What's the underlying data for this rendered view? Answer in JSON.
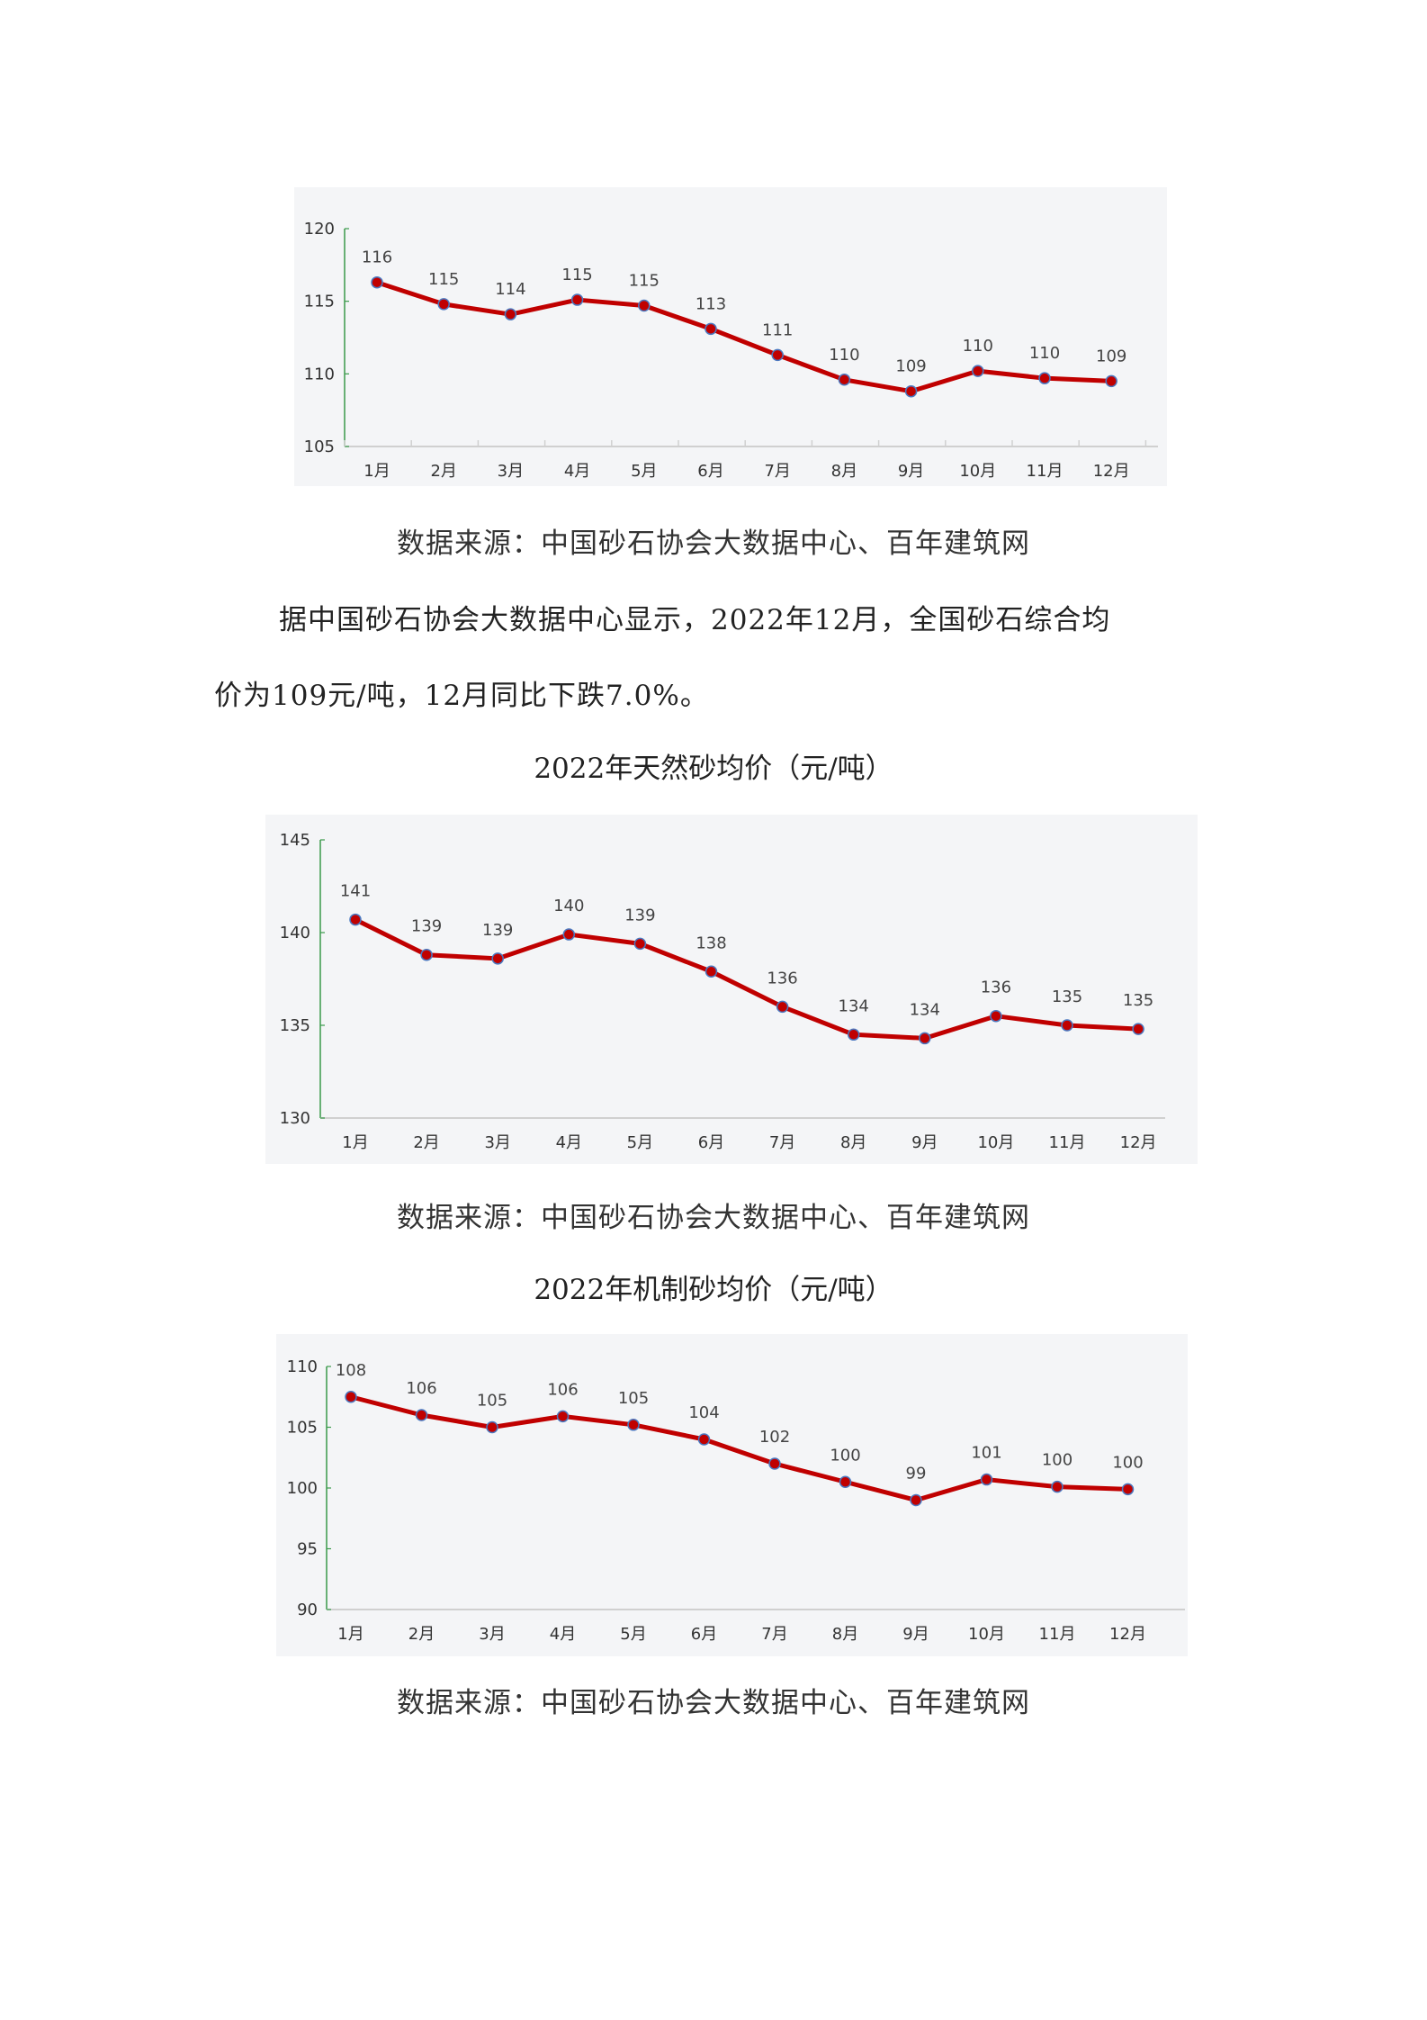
{
  "chart1": {
    "source": "数据来源：中国砂石协会大数据中心、百年建筑网"
  },
  "paragraph": {
    "line1": "据中国砂石协会大数据中心显示，2022年12月，全国砂石综合均",
    "line2": "价为109元/吨，12月同比下跌7.0%。"
  },
  "chart2": {
    "title": "2022年天然砂均价（元/吨）",
    "source": "数据来源：中国砂石协会大数据中心、百年建筑网"
  },
  "chart3": {
    "title": "2022年机制砂均价（元/吨）",
    "source": "数据来源：中国砂石协会大数据中心、百年建筑网"
  },
  "colors": {
    "line": "#c00000",
    "marker_edge": "#4a78c0",
    "axis_y": "#3a9a4a",
    "axis_x": "#d0d0d0",
    "panel_bg": "#f4f5f7"
  },
  "chart_data": [
    {
      "type": "line",
      "title": "",
      "categories": [
        "1月",
        "2月",
        "3月",
        "4月",
        "5月",
        "6月",
        "7月",
        "8月",
        "9月",
        "10月",
        "11月",
        "12月"
      ],
      "values": [
        116.3,
        114.8,
        114.1,
        115.1,
        114.7,
        113.1,
        111.3,
        109.6,
        108.8,
        110.2,
        109.7,
        109.5
      ],
      "data_labels": [
        "116",
        "115",
        "114",
        "115",
        "115",
        "113",
        "111",
        "110",
        "109",
        "110",
        "110",
        "109"
      ],
      "xlabel": "",
      "ylabel": "",
      "ylim": [
        105,
        120
      ],
      "yticks": [
        105,
        110,
        115,
        120
      ],
      "grid": false,
      "legend": null
    },
    {
      "type": "line",
      "title": "2022年天然砂均价（元/吨）",
      "categories": [
        "1月",
        "2月",
        "3月",
        "4月",
        "5月",
        "6月",
        "7月",
        "8月",
        "9月",
        "10月",
        "11月",
        "12月"
      ],
      "values": [
        140.7,
        138.8,
        138.6,
        139.9,
        139.4,
        137.9,
        136.0,
        134.5,
        134.3,
        135.5,
        135.0,
        134.8
      ],
      "data_labels": [
        "141",
        "139",
        "139",
        "140",
        "139",
        "138",
        "136",
        "134",
        "134",
        "136",
        "135",
        "135"
      ],
      "xlabel": "",
      "ylabel": "",
      "ylim": [
        130,
        145
      ],
      "yticks": [
        130,
        135,
        140,
        145
      ],
      "grid": false,
      "legend": null
    },
    {
      "type": "line",
      "title": "2022年机制砂均价（元/吨）",
      "categories": [
        "1月",
        "2月",
        "3月",
        "4月",
        "5月",
        "6月",
        "7月",
        "8月",
        "9月",
        "10月",
        "11月",
        "12月"
      ],
      "values": [
        107.5,
        106.0,
        105.0,
        105.9,
        105.2,
        104.0,
        102.0,
        100.5,
        99.0,
        100.7,
        100.1,
        99.9
      ],
      "data_labels": [
        "108",
        "106",
        "105",
        "106",
        "105",
        "104",
        "102",
        "100",
        "99",
        "101",
        "100",
        "100"
      ],
      "xlabel": "",
      "ylabel": "",
      "ylim": [
        90,
        110
      ],
      "yticks": [
        90,
        95,
        100,
        105,
        110
      ],
      "grid": false,
      "legend": null
    }
  ]
}
